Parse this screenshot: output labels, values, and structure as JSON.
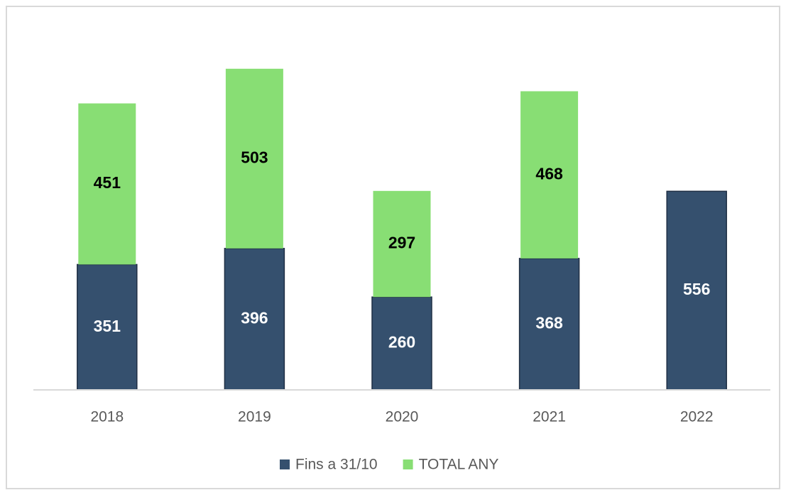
{
  "chart_data": {
    "type": "bar",
    "stacked": true,
    "categories": [
      "2018",
      "2019",
      "2020",
      "2021",
      "2022"
    ],
    "series": [
      {
        "name": "Fins a 31/10",
        "color": "#35506e",
        "values": [
          351,
          396,
          260,
          368,
          556
        ]
      },
      {
        "name": "TOTAL ANY",
        "color": "#88de74",
        "values": [
          451,
          503,
          297,
          468,
          null
        ]
      }
    ],
    "ylim": [
      0,
      1000
    ],
    "legend": "bottom"
  }
}
